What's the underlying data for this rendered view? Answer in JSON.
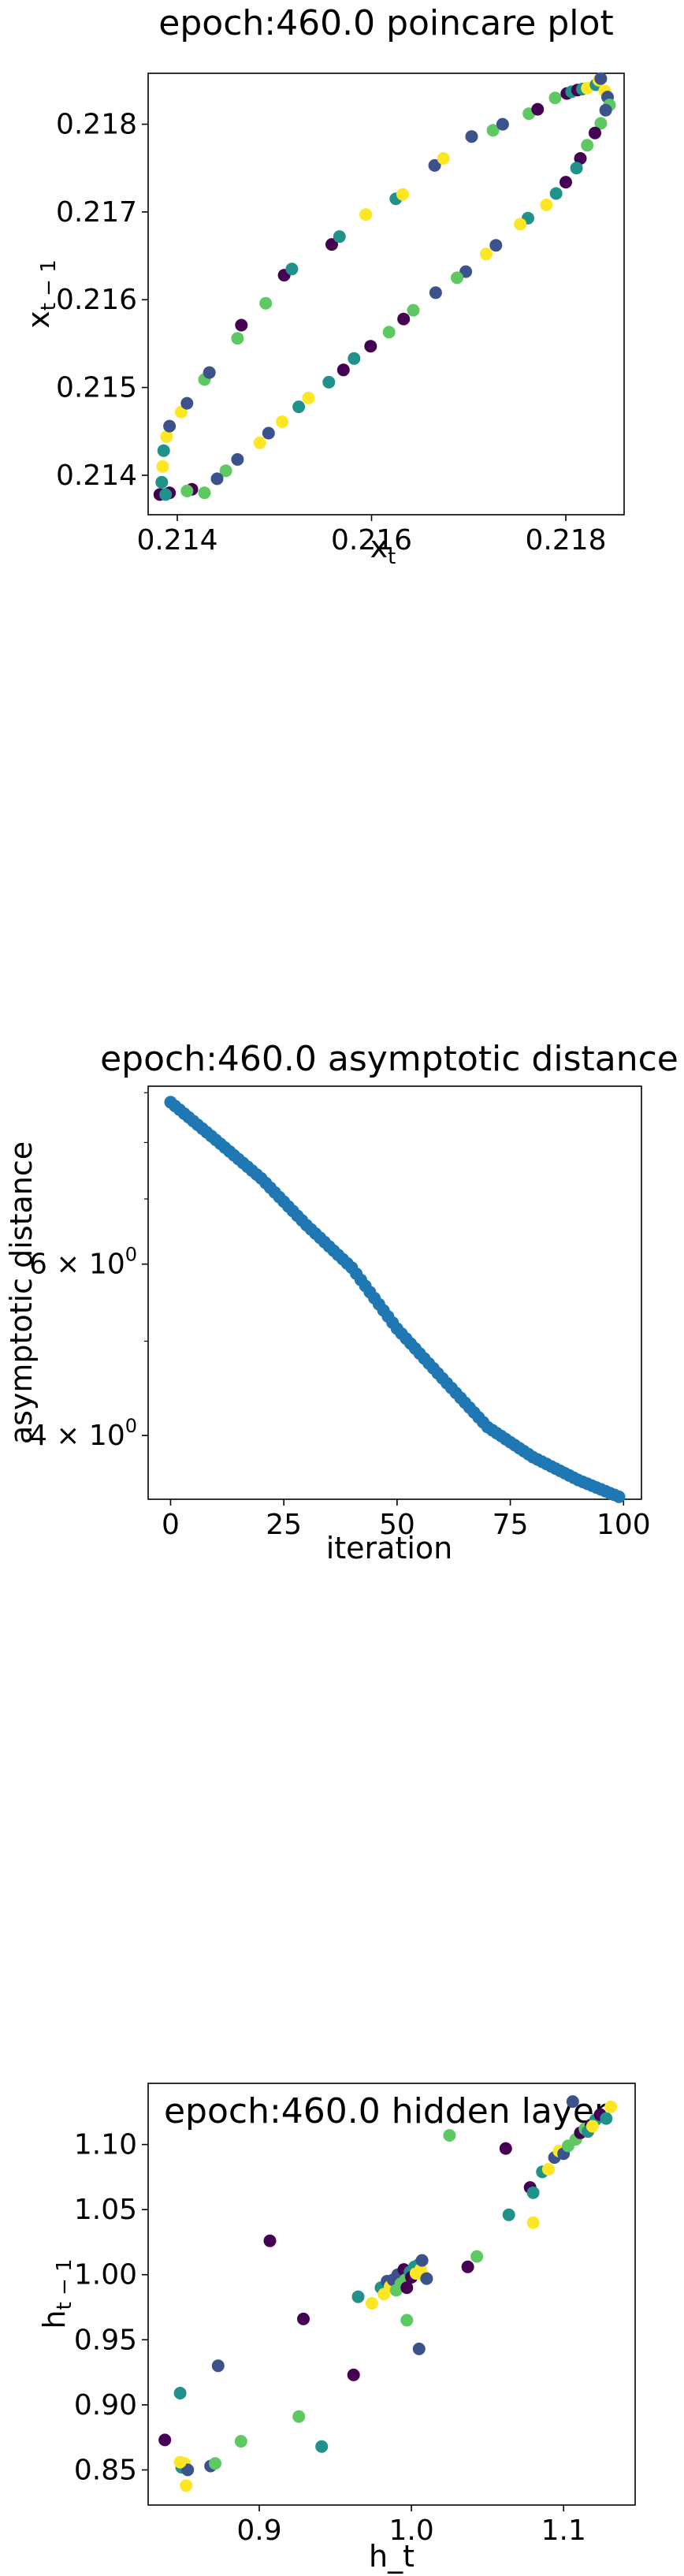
{
  "chart_data": [
    {
      "type": "scatter",
      "title": "epoch:460.0 poincare plot",
      "xlabel": "x",
      "xlabel_sub": "t",
      "ylabel": "x",
      "ylabel_sub": "t − 1",
      "xlim": [
        0.2137,
        0.2186
      ],
      "ylim": [
        0.21355,
        0.21858
      ],
      "xticks": [
        0.214,
        0.216,
        0.218
      ],
      "xtick_labels": [
        "0.214",
        "0.216",
        "0.218"
      ],
      "yticks": [
        0.214,
        0.215,
        0.216,
        0.217,
        0.218
      ],
      "ytick_labels": [
        "0.214",
        "0.215",
        "0.216",
        "0.217",
        "0.218"
      ],
      "colormap": [
        "#440154",
        "#3b528b",
        "#21918c",
        "#5ec962",
        "#fde725"
      ],
      "points": [
        [
          0.21382,
          0.21378
        ],
        [
          0.21384,
          0.21392
        ],
        [
          0.21385,
          0.2141
        ],
        [
          0.21386,
          0.21428
        ],
        [
          0.21389,
          0.21444
        ],
        [
          0.21392,
          0.21456
        ],
        [
          0.21404,
          0.21472
        ],
        [
          0.2141,
          0.21482
        ],
        [
          0.21428,
          0.21509
        ],
        [
          0.21433,
          0.21517
        ],
        [
          0.21462,
          0.21556
        ],
        [
          0.21466,
          0.21571
        ],
        [
          0.21491,
          0.21596
        ],
        [
          0.2151,
          0.21628
        ],
        [
          0.21518,
          0.21635
        ],
        [
          0.21559,
          0.21663
        ],
        [
          0.21567,
          0.21672
        ],
        [
          0.21594,
          0.21697
        ],
        [
          0.21625,
          0.21715
        ],
        [
          0.21632,
          0.2172
        ],
        [
          0.21665,
          0.21753
        ],
        [
          0.21674,
          0.21761
        ],
        [
          0.21703,
          0.21786
        ],
        [
          0.21725,
          0.21793
        ],
        [
          0.21735,
          0.218
        ],
        [
          0.21762,
          0.21812
        ],
        [
          0.21771,
          0.21817
        ],
        [
          0.21789,
          0.2183
        ],
        [
          0.21801,
          0.21835
        ],
        [
          0.21806,
          0.21837
        ],
        [
          0.21812,
          0.21839
        ],
        [
          0.21817,
          0.2184
        ],
        [
          0.21822,
          0.21841
        ],
        [
          0.21831,
          0.21845
        ],
        [
          0.21834,
          0.2185
        ],
        [
          0.21836,
          0.21852
        ],
        [
          0.2184,
          0.21838
        ],
        [
          0.21843,
          0.21831
        ],
        [
          0.21845,
          0.21822
        ],
        [
          0.21841,
          0.21816
        ],
        [
          0.21836,
          0.21801
        ],
        [
          0.2183,
          0.2179
        ],
        [
          0.21822,
          0.21776
        ],
        [
          0.21815,
          0.21761
        ],
        [
          0.21811,
          0.2175
        ],
        [
          0.218,
          0.21734
        ],
        [
          0.2179,
          0.21721
        ],
        [
          0.2178,
          0.21708
        ],
        [
          0.21761,
          0.21693
        ],
        [
          0.21753,
          0.21686
        ],
        [
          0.21728,
          0.21662
        ],
        [
          0.21718,
          0.21652
        ],
        [
          0.21697,
          0.21632
        ],
        [
          0.21688,
          0.21625
        ],
        [
          0.21666,
          0.21608
        ],
        [
          0.21643,
          0.21588
        ],
        [
          0.21633,
          0.21578
        ],
        [
          0.21618,
          0.21563
        ],
        [
          0.21599,
          0.21547
        ],
        [
          0.21582,
          0.21533
        ],
        [
          0.21571,
          0.2152
        ],
        [
          0.21556,
          0.21506
        ],
        [
          0.21535,
          0.21488
        ],
        [
          0.21525,
          0.21478
        ],
        [
          0.21508,
          0.21461
        ],
        [
          0.21494,
          0.21448
        ],
        [
          0.21485,
          0.21437
        ],
        [
          0.21462,
          0.21418
        ],
        [
          0.2145,
          0.21405
        ],
        [
          0.21441,
          0.21396
        ],
        [
          0.21428,
          0.2138
        ],
        [
          0.21415,
          0.21384
        ],
        [
          0.2141,
          0.21382
        ],
        [
          0.21392,
          0.2138
        ],
        [
          0.21388,
          0.21378
        ]
      ]
    },
    {
      "type": "line",
      "title": "epoch:460.0 asymptotic distance",
      "xlabel": "iteration",
      "ylabel": "asymptotic distance",
      "xlim": [
        -4.95,
        103.95
      ],
      "ylim": [
        3.44,
        9.14
      ],
      "yscale": "log",
      "xticks": [
        0,
        25,
        50,
        75,
        100
      ],
      "xtick_labels": [
        "0",
        "25",
        "50",
        "75",
        "100"
      ],
      "ytick_labels": [
        {
          "value": 6,
          "mantissa": "6 × 10",
          "exp": "0"
        },
        {
          "value": 4,
          "mantissa": "4 × 10",
          "exp": "0"
        }
      ],
      "marker_color": "#1f77b4",
      "series_anchors": [
        [
          0,
          8.8
        ],
        [
          10,
          8.05
        ],
        [
          20,
          7.35
        ],
        [
          30,
          6.58
        ],
        [
          40,
          5.95
        ],
        [
          50,
          5.15
        ],
        [
          60,
          4.58
        ],
        [
          70,
          4.08
        ],
        [
          80,
          3.8
        ],
        [
          90,
          3.6
        ],
        [
          99,
          3.46
        ]
      ]
    },
    {
      "type": "scatter",
      "title": "epoch:460.0 hidden layer",
      "xlabel": "h_t",
      "ylabel": "h",
      "ylabel_sub": "t − 1",
      "xlim": [
        0.827,
        1.147
      ],
      "ylim": [
        0.823,
        1.147
      ],
      "xticks": [
        0.9,
        1.0,
        1.1
      ],
      "xtick_labels": [
        "0.9",
        "1.0",
        "1.1"
      ],
      "yticks": [
        0.85,
        0.9,
        0.95,
        1.0,
        1.05,
        1.1
      ],
      "ytick_labels": [
        "0.85",
        "0.90",
        "0.95",
        "1.00",
        "1.05",
        "1.10"
      ],
      "colormap": [
        "#440154",
        "#3b528b",
        "#21918c",
        "#5ec962",
        "#fde725"
      ],
      "points": [
        [
          0.838,
          0.873
        ],
        [
          0.848,
          0.909
        ],
        [
          0.852,
          0.838
        ],
        [
          0.849,
          0.852
        ],
        [
          0.851,
          0.855
        ],
        [
          0.853,
          0.85
        ],
        [
          0.848,
          0.856
        ],
        [
          0.868,
          0.853
        ],
        [
          0.871,
          0.855
        ],
        [
          0.873,
          0.93
        ],
        [
          0.888,
          0.872
        ],
        [
          0.907,
          1.026
        ],
        [
          0.926,
          0.891
        ],
        [
          0.929,
          0.966
        ],
        [
          0.941,
          0.868
        ],
        [
          0.962,
          0.923
        ],
        [
          0.965,
          0.983
        ],
        [
          0.974,
          0.978
        ],
        [
          0.98,
          0.99
        ],
        [
          0.982,
          0.985
        ],
        [
          0.984,
          0.995
        ],
        [
          0.986,
          0.991
        ],
        [
          0.988,
          0.996
        ],
        [
          0.99,
          0.988
        ],
        [
          0.991,
          1.0
        ],
        [
          0.993,
          0.993
        ],
        [
          0.995,
          1.004
        ],
        [
          0.996,
          0.996
        ],
        [
          0.997,
          0.99
        ],
        [
          0.999,
          1.002
        ],
        [
          1.0,
          0.998
        ],
        [
          1.002,
          1.006
        ],
        [
          1.003,
          1.001
        ],
        [
          1.005,
          1.008
        ],
        [
          1.006,
          1.004
        ],
        [
          1.007,
          1.011
        ],
        [
          1.008,
          0.999
        ],
        [
          1.01,
          0.997
        ],
        [
          0.997,
          0.965
        ],
        [
          1.005,
          0.943
        ],
        [
          1.025,
          1.107
        ],
        [
          1.037,
          1.006
        ],
        [
          1.043,
          1.014
        ],
        [
          1.062,
          1.097
        ],
        [
          1.064,
          1.046
        ],
        [
          1.078,
          1.067
        ],
        [
          1.08,
          1.063
        ],
        [
          1.08,
          1.04
        ],
        [
          1.086,
          1.079
        ],
        [
          1.09,
          1.081
        ],
        [
          1.094,
          1.09
        ],
        [
          1.097,
          1.095
        ],
        [
          1.1,
          1.093
        ],
        [
          1.103,
          1.099
        ],
        [
          1.106,
          1.133
        ],
        [
          1.108,
          1.104
        ],
        [
          1.111,
          1.109
        ],
        [
          1.114,
          1.112
        ],
        [
          1.118,
          1.115
        ],
        [
          1.121,
          1.119
        ],
        [
          1.124,
          1.123
        ],
        [
          1.128,
          1.12
        ],
        [
          1.131,
          1.129
        ],
        [
          1.116,
          1.11
        ],
        [
          1.119,
          1.114
        ]
      ]
    }
  ]
}
